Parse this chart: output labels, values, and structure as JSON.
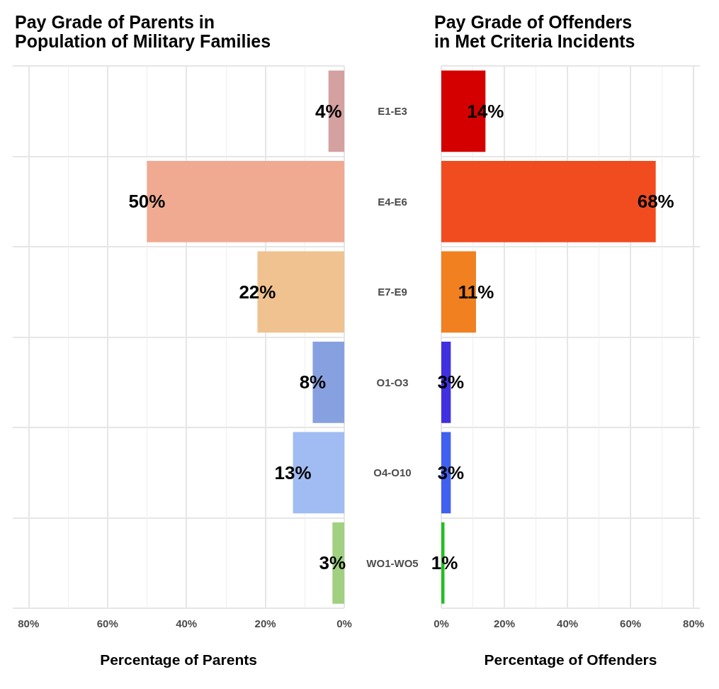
{
  "chart_data": [
    {
      "type": "bar",
      "orientation": "horizontal",
      "title": "Pay Grade of Parents in\nPopulation of Military Families",
      "xlabel": "Percentage of Parents",
      "categories": [
        "E1-E3",
        "E4-E6",
        "E7-E9",
        "O1-O3",
        "O4-O10",
        "WO1-WO5"
      ],
      "values": [
        4,
        50,
        22,
        8,
        13,
        3
      ],
      "value_labels": [
        "4%",
        "50%",
        "22%",
        "8%",
        "13%",
        "3%"
      ],
      "colors": [
        "#d4a0a0",
        "#f0aa92",
        "#f0c290",
        "#87a0e0",
        "#a0bcf2",
        "#a0d080"
      ],
      "xlim": [
        84,
        0
      ],
      "xticks": [
        {
          "value": 80,
          "label": "80%"
        },
        {
          "value": 60,
          "label": "60%"
        },
        {
          "value": 40,
          "label": "40%"
        },
        {
          "value": 20,
          "label": "20%"
        },
        {
          "value": 0,
          "label": "0%"
        }
      ],
      "grid": true
    },
    {
      "type": "bar",
      "orientation": "horizontal",
      "title": "Pay Grade of Offenders\nin Met Criteria Incidents",
      "xlabel": "Percentage of Offenders",
      "values": [
        14,
        68,
        11,
        3,
        3,
        1
      ],
      "value_labels": [
        "14%",
        "68%",
        "11%",
        "3%",
        "3%",
        "1%"
      ],
      "colors": [
        "#d40000",
        "#f04c20",
        "#f08020",
        "#4030e0",
        "#4060f0",
        "#20c020"
      ],
      "xlim": [
        0,
        82
      ],
      "xticks": [
        {
          "value": 0,
          "label": "0%"
        },
        {
          "value": 20,
          "label": "20%"
        },
        {
          "value": 40,
          "label": "40%"
        },
        {
          "value": 60,
          "label": "60%"
        },
        {
          "value": 80,
          "label": "80%"
        }
      ],
      "grid": true,
      "tick_labels": "x"
    }
  ]
}
